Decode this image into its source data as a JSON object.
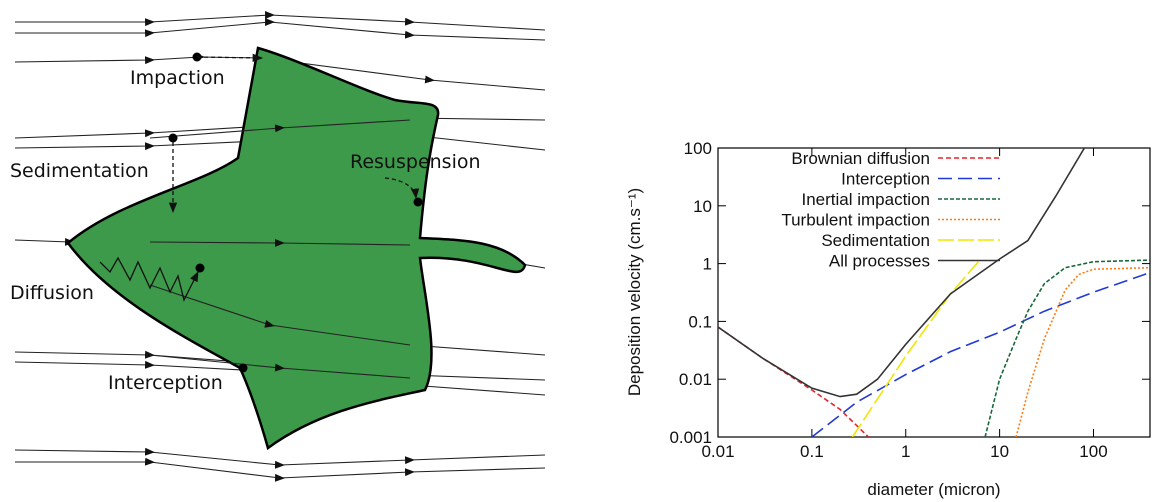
{
  "diagram": {
    "labels": [
      "Impaction",
      "Sedimentation",
      "Resuspension",
      "Diffusion",
      "Interception"
    ]
  },
  "chart_data": {
    "type": "line",
    "xlabel": "diameter (micron)",
    "ylabel": "Deposition velocity (cm.s⁻¹)",
    "xscale": "log",
    "yscale": "log",
    "xlim": [
      0.01,
      400
    ],
    "ylim": [
      0.001,
      100
    ],
    "xticks": [
      0.01,
      0.1,
      1,
      10,
      100
    ],
    "yticks": [
      0.001,
      0.01,
      0.1,
      1,
      10,
      100
    ],
    "legend": "upper left",
    "series": [
      {
        "name": "Brownian diffusion",
        "color": "#e8232a",
        "dash": "5,3",
        "x": [
          0.01,
          0.03,
          0.1,
          0.2,
          0.4
        ],
        "values": [
          0.08,
          0.023,
          0.0065,
          0.003,
          0.001
        ]
      },
      {
        "name": "Interception",
        "color": "#1f3ad6",
        "dash": "14,6",
        "x": [
          0.1,
          0.3,
          1,
          3,
          10,
          30,
          100,
          400
        ],
        "values": [
          0.001,
          0.004,
          0.012,
          0.03,
          0.065,
          0.15,
          0.32,
          0.7
        ]
      },
      {
        "name": "Inertial impaction",
        "color": "#19683a",
        "dash": "4,2",
        "x": [
          7,
          10,
          15,
          20,
          30,
          50,
          100,
          400
        ],
        "values": [
          0.001,
          0.01,
          0.05,
          0.15,
          0.45,
          0.85,
          1.08,
          1.15
        ]
      },
      {
        "name": "Turbulent impaction",
        "color": "#ff7a10",
        "dash": "2,2",
        "x": [
          15,
          20,
          30,
          50,
          70,
          100,
          400
        ],
        "values": [
          0.001,
          0.006,
          0.05,
          0.35,
          0.65,
          0.8,
          0.85
        ]
      },
      {
        "name": "Sedimentation",
        "color": "#f2e600",
        "dash": "16,4",
        "x": [
          0.27,
          1,
          3,
          6
        ],
        "values": [
          0.001,
          0.025,
          0.3,
          1.1
        ]
      },
      {
        "name": "All processes",
        "color": "#333333",
        "dash": "",
        "x": [
          0.01,
          0.03,
          0.1,
          0.2,
          0.3,
          0.5,
          1,
          3,
          10,
          20,
          40,
          80
        ],
        "values": [
          0.08,
          0.023,
          0.007,
          0.005,
          0.0055,
          0.01,
          0.04,
          0.3,
          1.2,
          2.5,
          15,
          100
        ]
      }
    ]
  }
}
